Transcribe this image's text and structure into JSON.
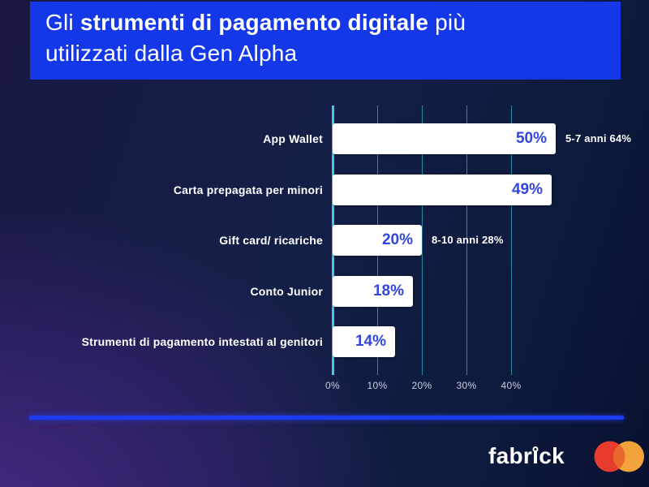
{
  "title": {
    "line1_prefix": "Gli ",
    "line1_bold": "strumenti di pagamento digitale",
    "line1_suffix": " più",
    "line2": "utilizzati dalla Gen Alpha"
  },
  "chart_data": {
    "type": "bar",
    "orientation": "horizontal",
    "title": "Gli strumenti di pagamento digitale più utilizzati dalla Gen Alpha",
    "categories": [
      "App Wallet",
      "Carta prepagata per minori",
      "Gift card/ ricariche",
      "Conto Junior",
      "Strumenti di pagamento intestati al genitori"
    ],
    "values": [
      50,
      49,
      20,
      18,
      14
    ],
    "value_labels": [
      "50%",
      "49%",
      "20%",
      "18%",
      "14%"
    ],
    "annotations": [
      {
        "row": 0,
        "text": "5-7 anni 64%"
      },
      {
        "row": 2,
        "text": "8-10 anni 28%"
      }
    ],
    "x_ticks": [
      "0%",
      "10%",
      "20%",
      "30%",
      "40%"
    ],
    "x_tick_values": [
      0,
      10,
      20,
      30,
      40
    ],
    "xlim": [
      0,
      47
    ],
    "grid": true,
    "legend": false,
    "bar_color": "#ffffff",
    "value_label_color": "#3046dd",
    "gridline_color": "#38b2cf",
    "axis_line_color": "#41c9e0"
  },
  "footer": {
    "brand": "fabrick",
    "brand_parts": {
      "pre": "fabr",
      "dotless_i": "ı",
      "post": "ck"
    }
  },
  "colors": {
    "title_banner_bg": "#1437e8",
    "background_purple": "#452a80",
    "background_navy": "#0c1a3c",
    "divider_blue": "#1d3cf0",
    "text_white": "#ffffff",
    "tick_text": "#c9cfdd",
    "mastercard_red": "#e73b2d",
    "mastercard_yellow": "#f2a33c",
    "mastercard_overlap": "#e9672e"
  }
}
